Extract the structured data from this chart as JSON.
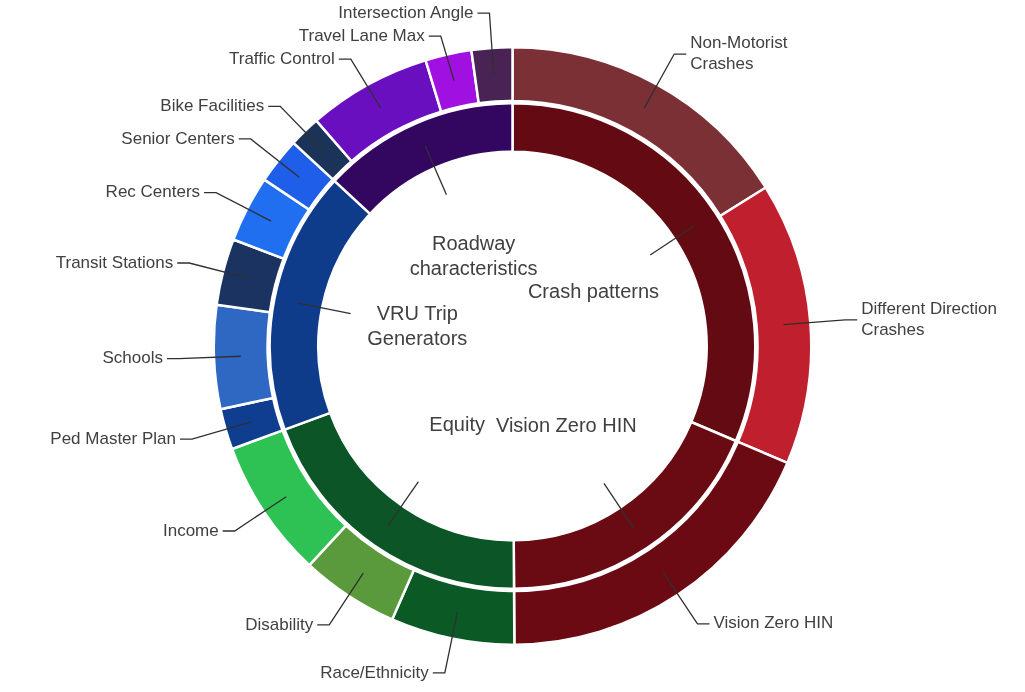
{
  "chart_data": [
    {
      "type": "donut",
      "categories": [
        "Crash patterns",
        "Vision Zero HIN",
        "Equity",
        "VRU Trip Generators",
        "Roadway characteristics"
      ],
      "values": [
        31.4,
        18.5,
        19.5,
        17.5,
        13.1
      ],
      "colors": [
        "#640a12",
        "#6a0a12",
        "#0b5526",
        "#0e3c8a",
        "#330660"
      ]
    },
    {
      "type": "donut",
      "categories": [
        "Non-Motorist Crashes",
        "Different Direction Crashes",
        "Vision Zero HIN",
        "Race/Ethnicity",
        "Disability",
        "Income",
        "Ped Master Plan",
        "Schools",
        "Transit Stations",
        "Rec Centers",
        "Senior Centers",
        "Bike Facilities",
        "Traffic Control",
        "Travel Lane Max",
        "Intersection Angle"
      ],
      "values": [
        16.1,
        15.3,
        18.5,
        6.7,
        5.3,
        7.5,
        2.2,
        5.6,
        3.6,
        3.6,
        2.5,
        1.7,
        6.7,
        2.5,
        2.2
      ],
      "colors": [
        "#7b3035",
        "#c0202e",
        "#6b0a12",
        "#0b5a25",
        "#5a9a3c",
        "#2ec254",
        "#0f3d8f",
        "#2f68c3",
        "#1b3360",
        "#1f6ff0",
        "#1f5ee8",
        "#1b3358",
        "#6a0fbf",
        "#a010e0",
        "#4a2355"
      ]
    }
  ]
}
